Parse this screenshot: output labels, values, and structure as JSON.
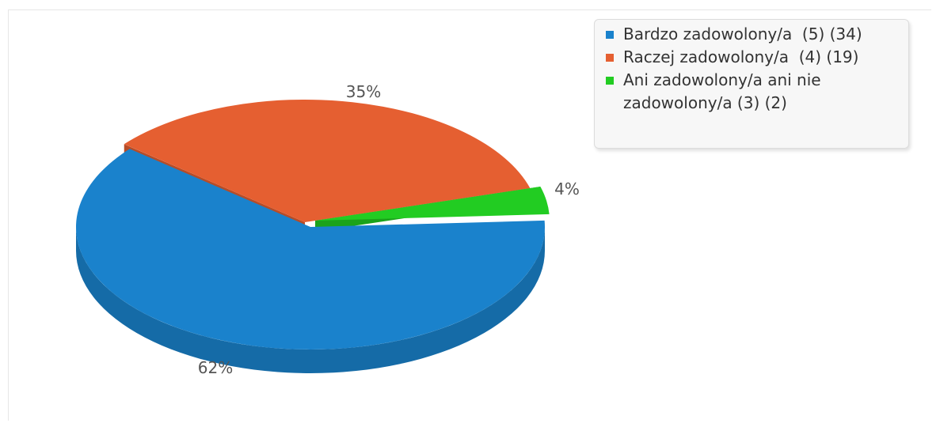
{
  "chart_data": {
    "type": "pie",
    "variant": "3d",
    "legend_position": "top-right",
    "slices": [
      {
        "label": "Bardzo zadowolony/a  (5) (34)",
        "value": 34,
        "percent_label": "62%",
        "color": "#1a82cc"
      },
      {
        "label": "Raczej zadowolony/a  (4) (19)",
        "value": 19,
        "percent_label": "35%",
        "color": "#e55f31"
      },
      {
        "label": "Ani zadowolony/a ani nie zadowolony/a (3) (2)",
        "value": 2,
        "percent_label": "4%",
        "color": "#22cc22"
      }
    ]
  }
}
